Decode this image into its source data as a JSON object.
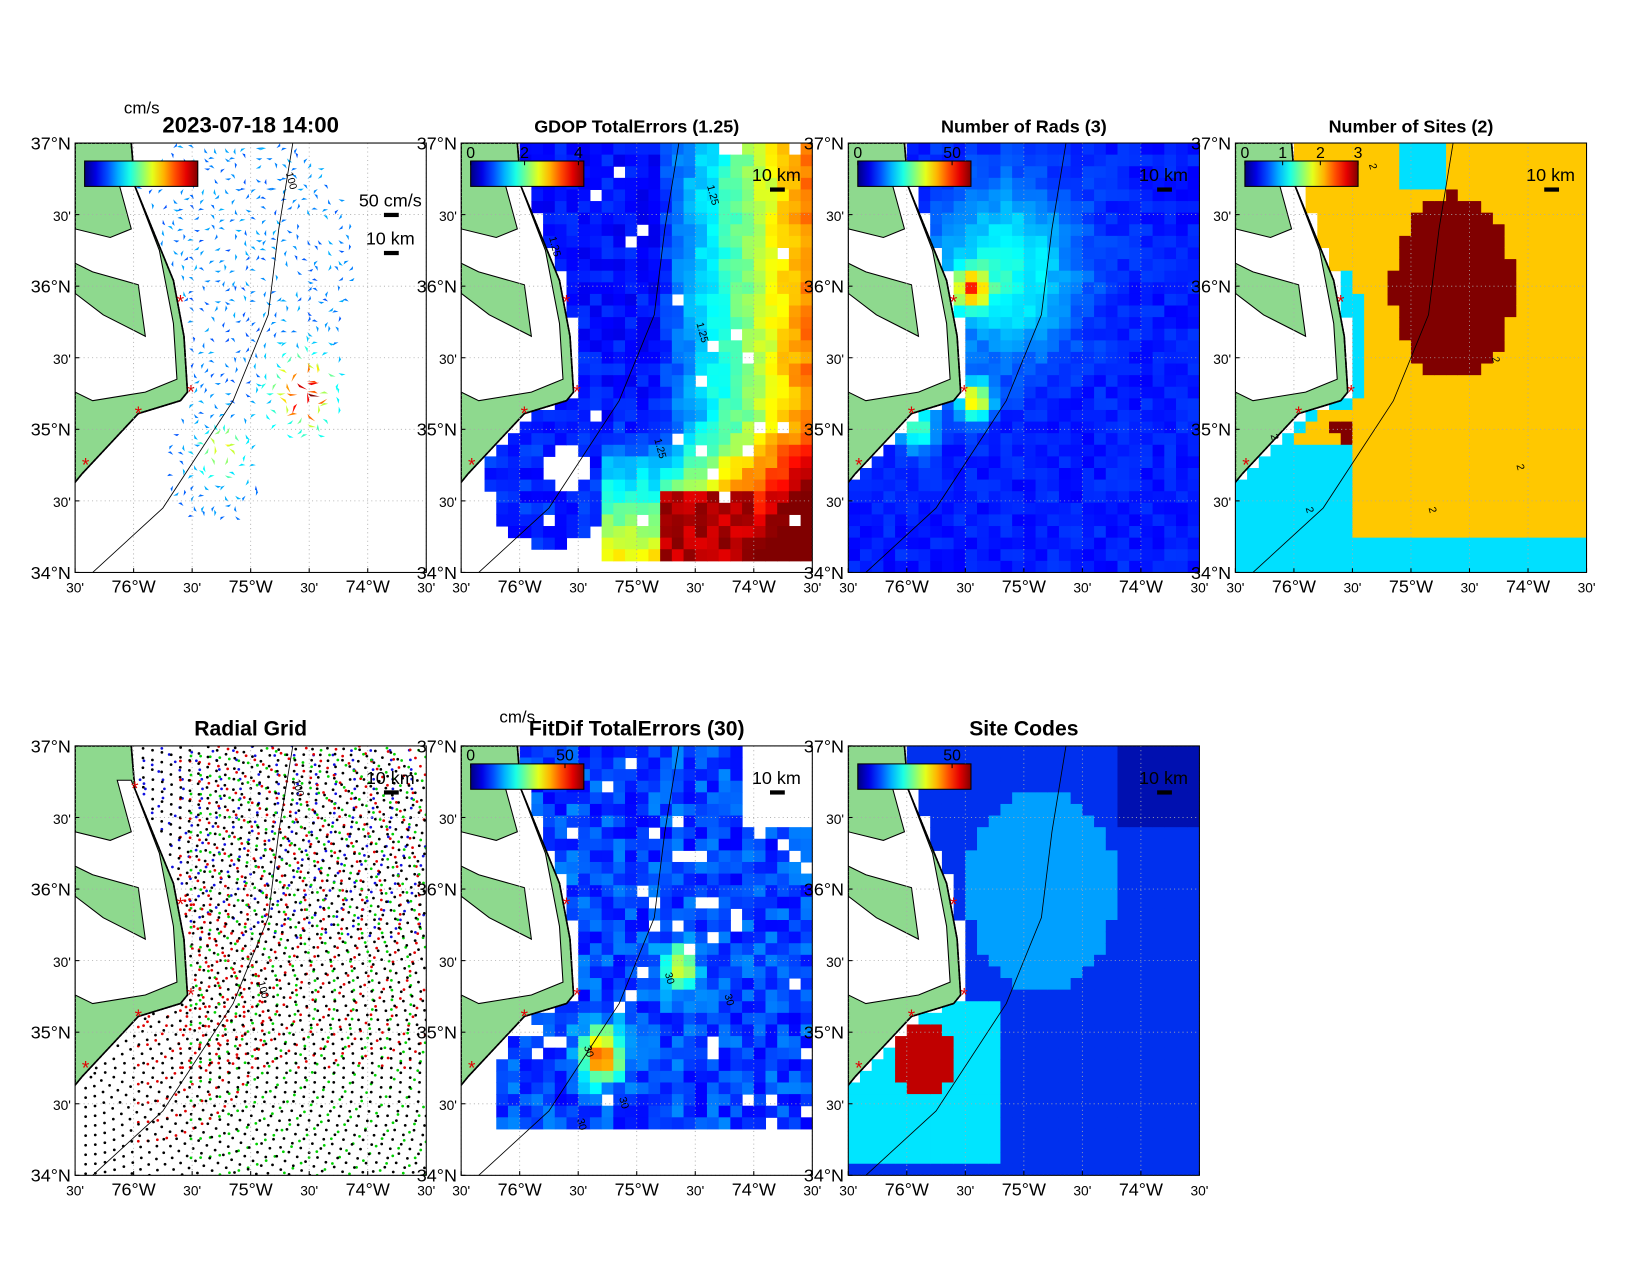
{
  "axes": {
    "lat_ticks": [
      {
        "value": 37,
        "label": "37°N"
      },
      {
        "value": 36.5,
        "label": "30'"
      },
      {
        "value": 36,
        "label": "36°N"
      },
      {
        "value": 35.5,
        "label": "30'"
      },
      {
        "value": 35,
        "label": "35°N"
      },
      {
        "value": 34.5,
        "label": "30'"
      },
      {
        "value": 34,
        "label": "34°N"
      }
    ],
    "lon_ticks": [
      {
        "value": -76.5,
        "label": "30'"
      },
      {
        "value": -76,
        "label": "76°W"
      },
      {
        "value": -75.5,
        "label": "30'"
      },
      {
        "value": -75,
        "label": "75°W"
      },
      {
        "value": -74.5,
        "label": "30'"
      },
      {
        "value": -74,
        "label": "74°W"
      },
      {
        "value": -73.5,
        "label": "30'"
      }
    ],
    "lon_lim": [
      -76.5,
      -73.5
    ],
    "lat_lim": [
      34,
      37
    ]
  },
  "panels": [
    {
      "title": "2023-07-18 14:00",
      "colorbar": {
        "unit": "cm/s"
      },
      "scale_labels": [
        "50 cm/s",
        "10 km"
      ],
      "contour_labels": [
        "100"
      ]
    },
    {
      "title": "GDOP TotalErrors (1.25)",
      "colorbar": {
        "lim": [
          0,
          4.2
        ],
        "ticks": [
          0,
          2,
          4
        ]
      },
      "scale_labels": [
        "10 km"
      ],
      "contour_labels": [
        "1.25",
        "1.25",
        "1.25",
        "1.25"
      ]
    },
    {
      "title": "Number of Rads (3)",
      "colorbar": {
        "lim": [
          0,
          60
        ],
        "ticks": [
          0,
          50
        ]
      },
      "scale_labels": [
        "10 km"
      ]
    },
    {
      "title": "Number of Sites (2)",
      "colorbar": {
        "lim": [
          0,
          3
        ],
        "ticks": [
          0,
          1,
          2,
          3
        ]
      },
      "scale_labels": [
        "10 km"
      ],
      "contour_labels": [
        "2",
        "2",
        "2",
        "2",
        "2",
        "2"
      ]
    },
    {
      "title": "Radial Grid",
      "scale_labels": [
        "10 km"
      ],
      "contour_labels": [
        "100",
        "100"
      ]
    },
    {
      "title": "FitDif TotalErrors (30)",
      "colorbar": {
        "unit": "cm/s",
        "lim": [
          0,
          60
        ],
        "ticks": [
          0,
          50
        ]
      },
      "scale_labels": [
        "10 km"
      ],
      "contour_labels": [
        "30",
        "30",
        "30",
        "30",
        "30"
      ]
    },
    {
      "title": "Site Codes",
      "colorbar": {
        "lim": [
          0,
          60
        ],
        "ticks": [
          50
        ]
      },
      "scale_labels": [
        "10 km"
      ]
    }
  ]
}
